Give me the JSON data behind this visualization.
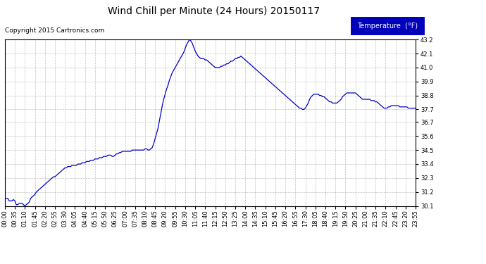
{
  "title": "Wind Chill per Minute (24 Hours) 20150117",
  "copyright": "Copyright 2015 Cartronics.com",
  "legend_label": "Temperature  (°F)",
  "line_color": "#0000cc",
  "background_color": "#ffffff",
  "plot_bg_color": "#ffffff",
  "grid_color": "#999999",
  "ylim": [
    30.1,
    43.2
  ],
  "yticks": [
    30.1,
    31.2,
    32.3,
    33.4,
    34.5,
    35.6,
    36.7,
    37.7,
    38.8,
    39.9,
    41.0,
    42.1,
    43.2
  ],
  "x_tick_labels": [
    "00:00",
    "00:35",
    "01:10",
    "01:45",
    "02:20",
    "02:55",
    "03:30",
    "04:05",
    "04:40",
    "05:15",
    "05:50",
    "06:25",
    "07:00",
    "07:35",
    "08:10",
    "08:45",
    "09:20",
    "09:55",
    "10:30",
    "11:05",
    "11:40",
    "12:15",
    "12:50",
    "13:25",
    "14:00",
    "14:35",
    "15:10",
    "15:45",
    "16:20",
    "16:55",
    "17:30",
    "18:05",
    "18:40",
    "19:15",
    "19:50",
    "20:25",
    "21:00",
    "21:35",
    "22:10",
    "22:45",
    "23:20",
    "23:55"
  ],
  "data_times_minutes": [
    0,
    5,
    10,
    15,
    20,
    25,
    30,
    35,
    40,
    45,
    50,
    55,
    60,
    65,
    70,
    75,
    80,
    85,
    90,
    95,
    100,
    105,
    110,
    115,
    120,
    125,
    130,
    135,
    140,
    145,
    150,
    155,
    160,
    165,
    170,
    175,
    180,
    185,
    190,
    195,
    200,
    205,
    210,
    215,
    220,
    225,
    230,
    235,
    240,
    245,
    250,
    255,
    260,
    265,
    270,
    275,
    280,
    285,
    290,
    295,
    300,
    305,
    310,
    315,
    320,
    325,
    330,
    335,
    340,
    345,
    350,
    355,
    360,
    365,
    370,
    375,
    380,
    385,
    390,
    395,
    400,
    405,
    410,
    415,
    420,
    425,
    430,
    435,
    440,
    445,
    450,
    455,
    460,
    465,
    470,
    475,
    480,
    485,
    490,
    495,
    500,
    505,
    510,
    515,
    520,
    525,
    530,
    535,
    540,
    545,
    550,
    555,
    560,
    565,
    570,
    575,
    580,
    585,
    590,
    595,
    600,
    605,
    610,
    615,
    620,
    625,
    630,
    635,
    640,
    645,
    650,
    655,
    660,
    665,
    670,
    675,
    680,
    685,
    690,
    695,
    700,
    705,
    710,
    715,
    720,
    725,
    730,
    735,
    740,
    745,
    750,
    755,
    760,
    765,
    770,
    775,
    780,
    785,
    790,
    795,
    800,
    805,
    810,
    815,
    820,
    825,
    830,
    835,
    840,
    845,
    850,
    855,
    860,
    865,
    870,
    875,
    880,
    885,
    890,
    895,
    900,
    905,
    910,
    915,
    920,
    925,
    930,
    935,
    940,
    945,
    950,
    955,
    960,
    965,
    970,
    975,
    980,
    985,
    990,
    995,
    1000,
    1005,
    1010,
    1015,
    1020,
    1025,
    1030,
    1035,
    1040,
    1045,
    1050,
    1055,
    1060,
    1065,
    1070,
    1075,
    1080,
    1085,
    1090,
    1095,
    1100,
    1105,
    1110,
    1115,
    1120,
    1125,
    1130,
    1135,
    1140,
    1145,
    1150,
    1155,
    1160,
    1165,
    1170,
    1175,
    1180,
    1185,
    1190,
    1195,
    1200,
    1205,
    1210,
    1215,
    1220,
    1225,
    1230,
    1235,
    1240,
    1245,
    1250,
    1255,
    1260,
    1265,
    1270,
    1275,
    1280,
    1285,
    1290,
    1295,
    1300,
    1305,
    1310,
    1315,
    1320,
    1325,
    1330,
    1335,
    1340,
    1345,
    1350,
    1355,
    1360,
    1365,
    1370,
    1375,
    1380,
    1385,
    1390,
    1395,
    1400,
    1405,
    1410,
    1415,
    1420,
    1425,
    1430,
    1435
  ],
  "data_values": [
    30.7,
    30.7,
    30.7,
    30.5,
    30.5,
    30.5,
    30.6,
    30.5,
    30.2,
    30.2,
    30.3,
    30.3,
    30.3,
    30.2,
    30.1,
    30.2,
    30.3,
    30.4,
    30.7,
    30.8,
    30.9,
    31.0,
    31.2,
    31.3,
    31.4,
    31.5,
    31.6,
    31.7,
    31.8,
    31.9,
    32.0,
    32.1,
    32.2,
    32.3,
    32.4,
    32.4,
    32.5,
    32.6,
    32.7,
    32.8,
    32.9,
    33.0,
    33.1,
    33.1,
    33.2,
    33.2,
    33.2,
    33.3,
    33.3,
    33.3,
    33.3,
    33.4,
    33.4,
    33.4,
    33.5,
    33.5,
    33.5,
    33.6,
    33.6,
    33.6,
    33.7,
    33.7,
    33.7,
    33.8,
    33.8,
    33.8,
    33.9,
    33.9,
    33.9,
    34.0,
    34.0,
    34.0,
    34.1,
    34.1,
    34.1,
    34.0,
    34.0,
    34.1,
    34.2,
    34.2,
    34.3,
    34.3,
    34.4,
    34.4,
    34.4,
    34.4,
    34.4,
    34.4,
    34.4,
    34.5,
    34.5,
    34.5,
    34.5,
    34.5,
    34.5,
    34.5,
    34.5,
    34.5,
    34.6,
    34.6,
    34.5,
    34.5,
    34.6,
    34.7,
    35.0,
    35.4,
    35.8,
    36.2,
    36.8,
    37.4,
    38.0,
    38.5,
    38.9,
    39.3,
    39.6,
    40.0,
    40.3,
    40.6,
    40.8,
    41.0,
    41.2,
    41.4,
    41.6,
    41.8,
    42.0,
    42.2,
    42.5,
    42.8,
    43.0,
    43.2,
    43.1,
    42.9,
    42.6,
    42.3,
    42.1,
    41.9,
    41.8,
    41.7,
    41.7,
    41.7,
    41.6,
    41.6,
    41.5,
    41.4,
    41.3,
    41.2,
    41.1,
    41.0,
    41.0,
    41.0,
    41.0,
    41.1,
    41.1,
    41.2,
    41.2,
    41.3,
    41.3,
    41.4,
    41.5,
    41.5,
    41.6,
    41.7,
    41.7,
    41.8,
    41.8,
    41.9,
    41.8,
    41.7,
    41.6,
    41.5,
    41.4,
    41.3,
    41.2,
    41.1,
    41.0,
    40.9,
    40.8,
    40.7,
    40.6,
    40.5,
    40.4,
    40.3,
    40.2,
    40.1,
    40.0,
    39.9,
    39.8,
    39.7,
    39.6,
    39.5,
    39.4,
    39.3,
    39.2,
    39.1,
    39.0,
    38.9,
    38.8,
    38.7,
    38.6,
    38.5,
    38.4,
    38.3,
    38.2,
    38.1,
    38.0,
    37.9,
    37.8,
    37.8,
    37.7,
    37.7,
    37.8,
    38.0,
    38.2,
    38.5,
    38.7,
    38.8,
    38.9,
    38.9,
    38.9,
    38.9,
    38.8,
    38.8,
    38.7,
    38.7,
    38.6,
    38.5,
    38.4,
    38.3,
    38.3,
    38.2,
    38.2,
    38.2,
    38.2,
    38.3,
    38.4,
    38.5,
    38.7,
    38.8,
    38.9,
    39.0,
    39.0,
    39.0,
    39.0,
    39.0,
    39.0,
    39.0,
    38.9,
    38.8,
    38.7,
    38.6,
    38.5,
    38.5,
    38.5,
    38.5,
    38.5,
    38.5,
    38.4,
    38.4,
    38.4,
    38.3,
    38.3,
    38.2,
    38.1,
    38.0,
    37.9,
    37.8,
    37.8,
    37.8,
    37.9,
    37.9,
    38.0,
    38.0,
    38.0,
    38.0,
    38.0,
    38.0,
    37.9,
    37.9,
    37.9,
    37.9,
    37.9,
    37.9,
    37.8,
    37.8,
    37.8,
    37.8,
    37.8,
    37.8,
    37.7,
    37.7,
    37.6,
    37.7,
    37.7,
    37.7,
    37.7,
    37.7,
    37.7,
    37.7,
    37.6
  ],
  "x_tick_positions_minutes": [
    0,
    35,
    70,
    105,
    140,
    175,
    210,
    245,
    280,
    315,
    350,
    385,
    420,
    455,
    490,
    525,
    560,
    595,
    630,
    665,
    700,
    735,
    770,
    805,
    840,
    875,
    910,
    945,
    980,
    1015,
    1050,
    1085,
    1120,
    1155,
    1190,
    1225,
    1260,
    1295,
    1330,
    1365,
    1400,
    1435
  ],
  "title_fontsize": 10,
  "copyright_fontsize": 6.5,
  "tick_fontsize": 6,
  "legend_fontsize": 7,
  "legend_bg_color": "#0000bb",
  "legend_text_color": "#ffffff",
  "legend_border_color": "#ffffff"
}
